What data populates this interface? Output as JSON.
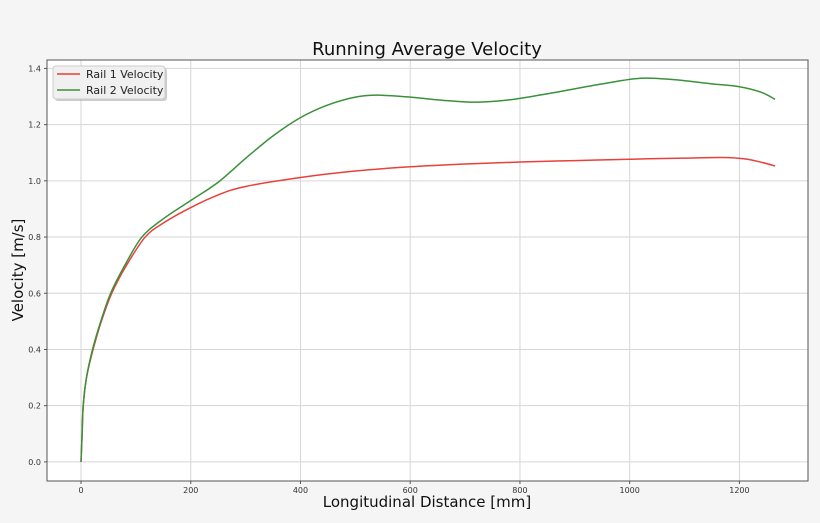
{
  "chart_data": {
    "type": "line",
    "title": "Running Average Velocity",
    "xlabel": "Longitudinal Distance [mm]",
    "ylabel": "Velocity [m/s]",
    "xlim": [
      -62,
      1325
    ],
    "ylim": [
      -0.068,
      1.43
    ],
    "xticks": [
      0,
      200,
      400,
      600,
      800,
      1000,
      1200
    ],
    "yticks": [
      0.0,
      0.2,
      0.4,
      0.6,
      0.8,
      1.0,
      1.2,
      1.4
    ],
    "xtick_labels": [
      "0",
      "200",
      "400",
      "600",
      "800",
      "1000",
      "1200"
    ],
    "ytick_labels": [
      "0.0",
      "0.2",
      "0.4",
      "0.6",
      "0.8",
      "1.0",
      "1.2",
      "1.4"
    ],
    "grid": true,
    "legend_position": "top-left",
    "series": [
      {
        "name": "Rail 1 Velocity",
        "color": "#e8403a",
        "x": [
          0,
          2,
          4,
          10,
          22,
          37,
          56,
          83,
          117,
          150,
          200,
          250,
          300,
          400,
          500,
          600,
          700,
          800,
          900,
          1000,
          1100,
          1170,
          1210,
          1240,
          1265
        ],
        "y": [
          0,
          0.1,
          0.2,
          0.3,
          0.4,
          0.5,
          0.6,
          0.7,
          0.8,
          0.85,
          0.905,
          0.95,
          0.98,
          1.012,
          1.035,
          1.05,
          1.06,
          1.067,
          1.072,
          1.077,
          1.081,
          1.083,
          1.078,
          1.066,
          1.053
        ]
      },
      {
        "name": "Rail 2 Velocity",
        "color": "#3a913a",
        "x": [
          0,
          2,
          4,
          10,
          21,
          36,
          54,
          80,
          111,
          150,
          200,
          250,
          300,
          350,
          400,
          450,
          500,
          540,
          600,
          650,
          720,
          780,
          850,
          950,
          1020,
          1080,
          1150,
          1200,
          1240,
          1265
        ],
        "y": [
          0,
          0.1,
          0.2,
          0.3,
          0.4,
          0.5,
          0.6,
          0.7,
          0.8,
          0.865,
          0.93,
          0.995,
          1.08,
          1.16,
          1.225,
          1.27,
          1.298,
          1.305,
          1.298,
          1.288,
          1.28,
          1.288,
          1.31,
          1.345,
          1.365,
          1.36,
          1.345,
          1.335,
          1.315,
          1.29
        ]
      }
    ]
  }
}
